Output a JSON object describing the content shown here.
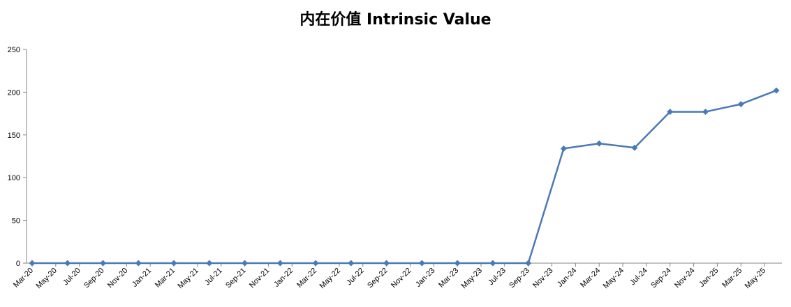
{
  "chart_data": {
    "type": "line",
    "title": "内在价值 Intrinsic Value",
    "xlabel": "",
    "ylabel": "",
    "grid": false,
    "legend": "none",
    "ylim": [
      0,
      250
    ],
    "yticks": [
      0,
      50,
      100,
      150,
      200,
      250
    ],
    "x_tick_labels": [
      "Mar-20",
      "May-20",
      "Jul-20",
      "Sep-20",
      "Nov-20",
      "Jan-21",
      "Mar-21",
      "May-21",
      "Jul-21",
      "Sep-21",
      "Nov-21",
      "Jan-22",
      "Mar-22",
      "May-22",
      "Jul-22",
      "Sep-22",
      "Nov-22",
      "Jan-23",
      "Mar-23",
      "May-23",
      "Jul-23",
      "Sep-23",
      "Nov-23",
      "Jan-24",
      "Mar-24",
      "May-24",
      "Jul-24",
      "Sep-24",
      "Nov-24",
      "Jan-25",
      "Mar-25",
      "May-25"
    ],
    "series": [
      {
        "color": "#4a7ab5",
        "marker": "diamond",
        "points": [
          {
            "x": "2020-03",
            "y": 0
          },
          {
            "x": "2020-06",
            "y": 0
          },
          {
            "x": "2020-09",
            "y": 0
          },
          {
            "x": "2020-12",
            "y": 0
          },
          {
            "x": "2021-03",
            "y": 0
          },
          {
            "x": "2021-06",
            "y": 0
          },
          {
            "x": "2021-09",
            "y": 0
          },
          {
            "x": "2021-12",
            "y": 0
          },
          {
            "x": "2022-03",
            "y": 0
          },
          {
            "x": "2022-06",
            "y": 0
          },
          {
            "x": "2022-09",
            "y": 0
          },
          {
            "x": "2022-12",
            "y": 0
          },
          {
            "x": "2023-03",
            "y": 0
          },
          {
            "x": "2023-06",
            "y": 0
          },
          {
            "x": "2023-09",
            "y": 0
          },
          {
            "x": "2023-12",
            "y": 134
          },
          {
            "x": "2024-03",
            "y": 140
          },
          {
            "x": "2024-06",
            "y": 135
          },
          {
            "x": "2024-09",
            "y": 177
          },
          {
            "x": "2024-12",
            "y": 177
          },
          {
            "x": "2025-03",
            "y": 186
          },
          {
            "x": "2025-06",
            "y": 202
          }
        ]
      }
    ]
  }
}
